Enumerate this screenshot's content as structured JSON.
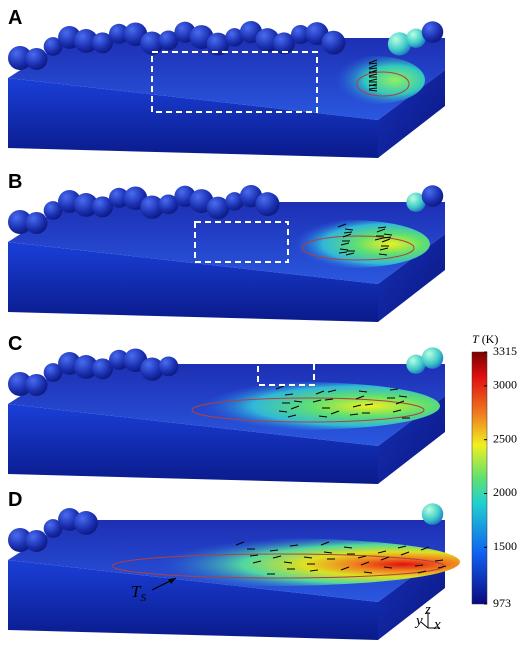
{
  "panels": [
    {
      "label": "A"
    },
    {
      "label": "B"
    },
    {
      "label": "C"
    },
    {
      "label": "D"
    }
  ],
  "colorbar": {
    "title": {
      "symbol": "T",
      "unit": "(K)"
    },
    "lim": [
      973,
      3315
    ],
    "ticks": [
      973,
      1500,
      2000,
      2500,
      3000,
      3315
    ]
  },
  "annotation": {
    "symbol": "T",
    "subscript": "S"
  },
  "axes_triad": {
    "y": "y",
    "z": "z",
    "x": "x"
  }
}
